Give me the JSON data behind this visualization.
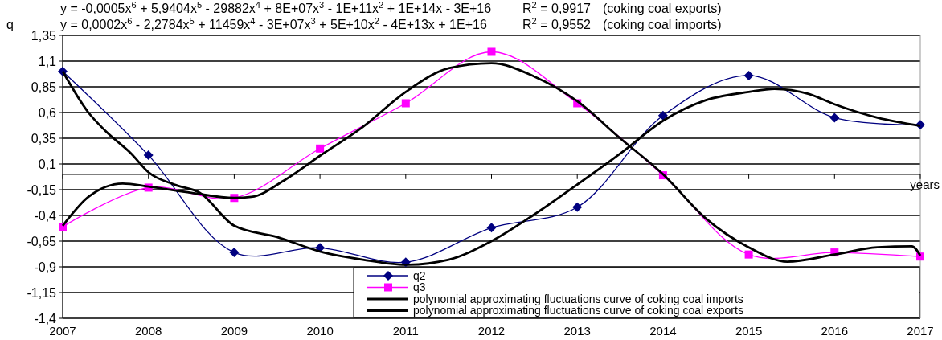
{
  "chart_data": {
    "type": "line",
    "ylabel": "q",
    "xlabel": "years",
    "x": [
      2007,
      2008,
      2009,
      2010,
      2011,
      2012,
      2013,
      2014,
      2015,
      2016,
      2017
    ],
    "xlim": [
      2007,
      2017
    ],
    "xticks": [
      2007,
      2008,
      2009,
      2010,
      2011,
      2012,
      2013,
      2014,
      2015,
      2016,
      2017
    ],
    "ylim": [
      -1.4,
      1.35
    ],
    "yticks": [
      {
        "value": 1.35,
        "label": "1,35"
      },
      {
        "value": 1.1,
        "label": "1,1"
      },
      {
        "value": 0.85,
        "label": "0,85"
      },
      {
        "value": 0.6,
        "label": "0,6"
      },
      {
        "value": 0.35,
        "label": "0,35"
      },
      {
        "value": 0.1,
        "label": "0,1"
      },
      {
        "value": -0.15,
        "label": "-0,15"
      },
      {
        "value": -0.4,
        "label": "-0,4"
      },
      {
        "value": -0.65,
        "label": "-0,65"
      },
      {
        "value": -0.9,
        "label": "-0,9"
      },
      {
        "value": -1.15,
        "label": "-1,15"
      },
      {
        "value": -1.4,
        "label": "-1,4"
      }
    ],
    "grid": "y",
    "legend": "bottom right",
    "series": [
      {
        "name": "q2",
        "color": "#000080",
        "marker": "diamond",
        "values": [
          1.0,
          0.185,
          -0.76,
          -0.715,
          -0.855,
          -0.52,
          -0.32,
          0.57,
          0.96,
          0.55,
          0.48
        ]
      },
      {
        "name": "q3",
        "color": "#ff00ff",
        "marker": "square",
        "values": [
          -0.51,
          -0.13,
          -0.23,
          0.25,
          0.69,
          1.19,
          0.69,
          -0.01,
          -0.78,
          -0.76,
          -0.8
        ]
      },
      {
        "name": "polynomial approximating fluctuations curve of coking coal imports",
        "color": "#000000",
        "marker": "none",
        "x": [
          2007,
          2007.3,
          2007.5,
          2007.8,
          2008,
          2008.3,
          2008.6,
          2009,
          2009.5,
          2010,
          2010.5,
          2011,
          2011.5,
          2012,
          2012.5,
          2013,
          2013.5,
          2014,
          2014.5,
          2015,
          2015.3,
          2015.7,
          2016,
          2016.5,
          2017
        ],
        "values": [
          1.0,
          0.6,
          0.42,
          0.2,
          0.02,
          -0.1,
          -0.18,
          -0.5,
          -0.61,
          -0.75,
          -0.83,
          -0.88,
          -0.83,
          -0.65,
          -0.39,
          -0.1,
          0.2,
          0.52,
          0.72,
          0.8,
          0.83,
          0.78,
          0.68,
          0.55,
          0.47
        ]
      },
      {
        "name": "polynomial approximating fluctuations curve of coking coal exports",
        "color": "#000000",
        "marker": "none",
        "x": [
          2007,
          2007.3,
          2007.7,
          2008,
          2008.5,
          2009,
          2009.2,
          2009.6,
          2010,
          2010.5,
          2011,
          2011.5,
          2012,
          2012.5,
          2013,
          2013.5,
          2014,
          2014.5,
          2015,
          2015.45,
          2016,
          2016.5,
          2016.9,
          2017
        ],
        "values": [
          -0.5,
          -0.22,
          -0.09,
          -0.12,
          -0.18,
          -0.23,
          -0.22,
          -0.05,
          0.18,
          0.46,
          0.8,
          1.03,
          1.08,
          0.95,
          0.71,
          0.35,
          0.0,
          -0.43,
          -0.71,
          -0.85,
          -0.78,
          -0.71,
          -0.7,
          -0.79
        ]
      }
    ],
    "annotations": [
      "y = -0,0005x$^{6}$ + 5,9404x$^{5}$ - 29882x$^{4}$ + 8E+07x$^{3}$ - 1E+11x$^{2}$ + 1E+14x - 3E+16",
      "R$^{2}$ = 0,9917",
      "(coking coal exports)",
      "y = 0,0002x$^{6}$ - 2,2784x$^{5}$ + 11459x$^{4}$ - 3E+07x$^{3}$ + 5E+10x$^{2}$ - 4E+13x + 1E+16",
      "R$^{2}$ = 0,9552",
      "(coking coal imports)"
    ]
  }
}
